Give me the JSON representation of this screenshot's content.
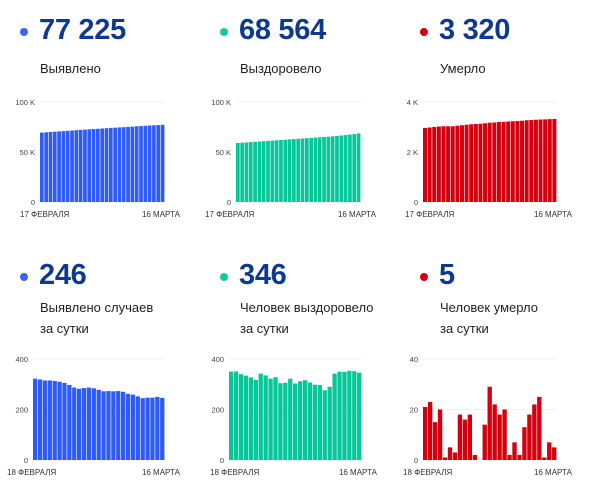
{
  "cards": [
    {
      "value": "77 225",
      "label_lines": [
        "Выявлено"
      ],
      "color": "#2f5bf5",
      "dot_color": "#3b63f0"
    },
    {
      "value": "68 564",
      "label_lines": [
        "Выздоровело"
      ],
      "color": "#06c79a",
      "dot_color": "#13c9a0"
    },
    {
      "value": "3 320",
      "label_lines": [
        "Умерло"
      ],
      "color": "#d4000f",
      "dot_color": "#d4000f"
    },
    {
      "value": "246",
      "label_lines": [
        "Выявлено случаев",
        "за сутки"
      ],
      "color": "#2f5bf5",
      "dot_color": "#3b63f0"
    },
    {
      "value": "346",
      "label_lines": [
        "Человек выздоровело",
        "за сутки"
      ],
      "color": "#06c79a",
      "dot_color": "#13c9a0"
    },
    {
      "value": "5",
      "label_lines": [
        "Человек умерло",
        "за сутки"
      ],
      "color": "#d4000f",
      "dot_color": "#d4000f"
    }
  ],
  "chart_data": [
    {
      "type": "bar",
      "title": "Выявлено",
      "ylim": [
        0,
        100000
      ],
      "yticks": [
        0,
        50000,
        100000
      ],
      "ytick_labels": [
        "0",
        "50 K",
        "100 K"
      ],
      "x_start_label": "17 ФЕВРАЛЯ",
      "x_end_label": "16 МАРТА",
      "grid": true,
      "values": [
        69400,
        69700,
        70000,
        70300,
        70600,
        70900,
        71200,
        71500,
        71800,
        72100,
        72400,
        72700,
        73000,
        73200,
        73500,
        73800,
        74100,
        74300,
        74600,
        74800,
        75100,
        75400,
        75700,
        75900,
        76200,
        76500,
        76700,
        76900,
        77225
      ]
    },
    {
      "type": "bar",
      "title": "Выздоровело",
      "ylim": [
        0,
        100000
      ],
      "yticks": [
        0,
        50000,
        100000
      ],
      "ytick_labels": [
        "0",
        "50 K",
        "100 K"
      ],
      "x_start_label": "17 ФЕВРАЛЯ",
      "x_end_label": "16 МАРТА",
      "grid": true,
      "values": [
        59000,
        59300,
        59600,
        59900,
        60200,
        60500,
        60800,
        61100,
        61400,
        61700,
        62000,
        62300,
        62600,
        62900,
        63200,
        63500,
        63800,
        64100,
        64400,
        64700,
        65000,
        65300,
        65700,
        66100,
        66500,
        66900,
        67400,
        67900,
        68564
      ]
    },
    {
      "type": "bar",
      "title": "Умерло",
      "ylim": [
        0,
        4000
      ],
      "yticks": [
        0,
        2000,
        4000
      ],
      "ytick_labels": [
        "0",
        "2 K",
        "4 K"
      ],
      "x_start_label": "17 ФЕВРАЛЯ",
      "x_end_label": "16 МАРТА",
      "grid": true,
      "values": [
        2960,
        2980,
        3000,
        3020,
        3030,
        3030,
        3030,
        3050,
        3070,
        3090,
        3110,
        3120,
        3130,
        3150,
        3170,
        3180,
        3200,
        3210,
        3220,
        3230,
        3240,
        3250,
        3270,
        3280,
        3290,
        3300,
        3305,
        3315,
        3320
      ]
    },
    {
      "type": "bar",
      "title": "Выявлено случаев за сутки",
      "ylim": [
        0,
        400
      ],
      "yticks": [
        0,
        200,
        400
      ],
      "ytick_labels": [
        "0",
        "200",
        "400"
      ],
      "x_start_label": "18 ФЕВРАЛЯ",
      "x_end_label": "16 МАРТА",
      "grid": true,
      "values": [
        322,
        319,
        315,
        315,
        313,
        310,
        305,
        297,
        287,
        282,
        285,
        287,
        284,
        278,
        272,
        273,
        272,
        273,
        270,
        262,
        259,
        252,
        245,
        247,
        247,
        250,
        246
      ]
    },
    {
      "type": "bar",
      "title": "Человек выздоровело за сутки",
      "ylim": [
        0,
        400
      ],
      "yticks": [
        0,
        200,
        400
      ],
      "ytick_labels": [
        "0",
        "200",
        "400"
      ],
      "x_start_label": "18 ФЕВРАЛЯ",
      "x_end_label": "16 МАРТА",
      "grid": true,
      "values": [
        350,
        351,
        340,
        334,
        327,
        317,
        342,
        335,
        322,
        328,
        304,
        306,
        322,
        303,
        312,
        316,
        307,
        298,
        297,
        276,
        290,
        342,
        350,
        349,
        353,
        352,
        346
      ]
    },
    {
      "type": "bar",
      "title": "Человек умерло за сутки",
      "ylim": [
        0,
        40
      ],
      "yticks": [
        0,
        20,
        40
      ],
      "ytick_labels": [
        "0",
        "20",
        "40"
      ],
      "x_start_label": "18 ФЕВРАЛЯ",
      "x_end_label": "16 МАРТА",
      "grid": true,
      "values": [
        21,
        23,
        15,
        20,
        1,
        5,
        3,
        18,
        16,
        18,
        2,
        0,
        14,
        29,
        22,
        18,
        20,
        2,
        7,
        2,
        13,
        18,
        22,
        25,
        1,
        7,
        5
      ]
    }
  ]
}
